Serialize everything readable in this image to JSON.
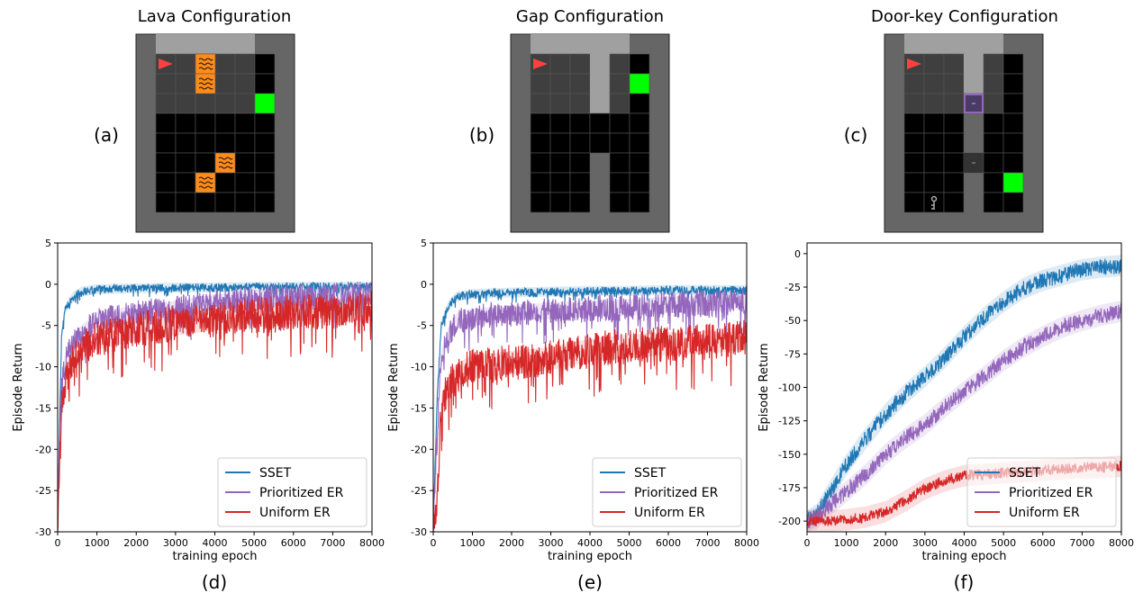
{
  "colors": {
    "sset": "#1f77b4",
    "prioritized": "#9467bd",
    "uniform": "#d62728",
    "grid_wall": "#666666",
    "grid_floor": "#000000",
    "grid_visible": "#3f3f3f",
    "grid_corridor": "#a0a0a0",
    "goal": "#00ff00",
    "agent": "#ff4040",
    "lava": "#ff8c1a",
    "door": "#9467bd"
  },
  "panels": [
    {
      "title": "Lava Configuration",
      "label": "(a)",
      "icons": [
        "agent-triangle-icon",
        "lava-tile-icon",
        "goal-square-icon"
      ]
    },
    {
      "title": "Gap Configuration",
      "label": "(b)",
      "icons": [
        "agent-triangle-icon",
        "goal-square-icon"
      ]
    },
    {
      "title": "Door-key Configuration",
      "label": "(c)",
      "icons": [
        "agent-triangle-icon",
        "door-icon",
        "key-icon",
        "goal-square-icon"
      ]
    }
  ],
  "chart_data": [
    {
      "type": "line",
      "label": "(d)",
      "xlabel": "training epoch",
      "ylabel": "Episode Return",
      "xlim": [
        0,
        8000
      ],
      "ylim": [
        -30,
        5
      ],
      "xticks": [
        0,
        1000,
        2000,
        3000,
        4000,
        5000,
        6000,
        7000,
        8000
      ],
      "yticks": [
        5,
        0,
        -5,
        -10,
        -15,
        -20,
        -25,
        -30
      ],
      "legend_position": "lower-right",
      "series": [
        {
          "name": "SSET",
          "x": [
            0,
            100,
            200,
            400,
            600,
            1000,
            2000,
            3000,
            4000,
            5000,
            6000,
            7000,
            8000
          ],
          "y": [
            -28,
            -6,
            -3,
            -1.5,
            -0.9,
            -0.6,
            -0.5,
            -0.4,
            -0.4,
            -0.3,
            -0.3,
            -0.3,
            -0.3
          ]
        },
        {
          "name": "Prioritized ER",
          "x": [
            0,
            100,
            200,
            400,
            600,
            1000,
            2000,
            3000,
            4000,
            5000,
            6000,
            7000,
            8000
          ],
          "y": [
            -28,
            -12,
            -9,
            -7,
            -6,
            -4.5,
            -3.5,
            -3,
            -2.2,
            -1.8,
            -1.6,
            -1.4,
            -1
          ]
        },
        {
          "name": "Uniform ER",
          "x": [
            0,
            100,
            200,
            400,
            600,
            1000,
            2000,
            3000,
            4000,
            5000,
            6000,
            7000,
            8000
          ],
          "y": [
            -29,
            -15,
            -12,
            -9,
            -8,
            -6.5,
            -5.5,
            -4.8,
            -4.2,
            -3.8,
            -3.5,
            -3.2,
            -3
          ]
        }
      ]
    },
    {
      "type": "line",
      "label": "(e)",
      "xlabel": "training epoch",
      "ylabel": "Episode Return",
      "xlim": [
        0,
        8000
      ],
      "ylim": [
        -30,
        5
      ],
      "xticks": [
        0,
        1000,
        2000,
        3000,
        4000,
        5000,
        6000,
        7000,
        8000
      ],
      "yticks": [
        5,
        0,
        -5,
        -10,
        -15,
        -20,
        -25,
        -30
      ],
      "legend_position": "lower-right",
      "series": [
        {
          "name": "SSET",
          "x": [
            0,
            100,
            200,
            400,
            600,
            1000,
            2000,
            3000,
            4000,
            5000,
            6000,
            7000,
            8000
          ],
          "y": [
            -29,
            -14,
            -5,
            -2.5,
            -1.5,
            -1.2,
            -1,
            -0.9,
            -0.8,
            -0.8,
            -0.7,
            -0.7,
            -0.7
          ]
        },
        {
          "name": "Prioritized ER",
          "x": [
            0,
            100,
            200,
            400,
            600,
            1000,
            2000,
            3000,
            4000,
            5000,
            6000,
            7000,
            8000
          ],
          "y": [
            -29,
            -18,
            -9,
            -6,
            -4.5,
            -4,
            -3.5,
            -3.2,
            -3,
            -2.8,
            -2.5,
            -2.3,
            -2
          ]
        },
        {
          "name": "Uniform ER",
          "x": [
            0,
            100,
            200,
            400,
            600,
            1000,
            2000,
            3000,
            4000,
            5000,
            6000,
            7000,
            8000
          ],
          "y": [
            -30,
            -26,
            -15,
            -12,
            -11,
            -10,
            -9.5,
            -9,
            -8,
            -7.5,
            -7.2,
            -7,
            -6.5
          ]
        }
      ]
    },
    {
      "type": "line",
      "label": "(f)",
      "xlabel": "training epoch",
      "ylabel": "Episode Return",
      "xlim": [
        0,
        8000
      ],
      "ylim": [
        -208,
        8
      ],
      "xticks": [
        0,
        1000,
        2000,
        3000,
        4000,
        5000,
        6000,
        7000,
        8000
      ],
      "yticks": [
        0,
        -25,
        -50,
        -75,
        -100,
        -125,
        -150,
        -175,
        -200
      ],
      "legend_position": "lower-right",
      "series": [
        {
          "name": "SSET",
          "x": [
            0,
            250,
            500,
            1000,
            1500,
            2000,
            2500,
            3000,
            3500,
            4000,
            4500,
            5000,
            5500,
            6000,
            6500,
            7000,
            7500,
            8000
          ],
          "y": [
            -200,
            -195,
            -182,
            -158,
            -138,
            -120,
            -105,
            -92,
            -78,
            -62,
            -48,
            -36,
            -26,
            -20,
            -16,
            -12,
            -10,
            -9
          ]
        },
        {
          "name": "Prioritized ER",
          "x": [
            0,
            250,
            500,
            1000,
            1500,
            2000,
            2500,
            3000,
            3500,
            4000,
            4500,
            5000,
            5500,
            6000,
            6500,
            7000,
            7500,
            8000
          ],
          "y": [
            -200,
            -198,
            -190,
            -178,
            -165,
            -150,
            -138,
            -128,
            -115,
            -103,
            -92,
            -80,
            -70,
            -62,
            -55,
            -50,
            -46,
            -43
          ]
        },
        {
          "name": "Uniform ER",
          "x": [
            0,
            500,
            1000,
            1500,
            2000,
            2500,
            3000,
            3500,
            4000,
            4500,
            5000,
            5500,
            6000,
            6500,
            7000,
            7500,
            8000
          ],
          "y": [
            -200,
            -200,
            -199,
            -197,
            -193,
            -185,
            -176,
            -170,
            -166,
            -165,
            -164,
            -163,
            -162,
            -161,
            -160,
            -160,
            -159
          ]
        }
      ]
    }
  ]
}
